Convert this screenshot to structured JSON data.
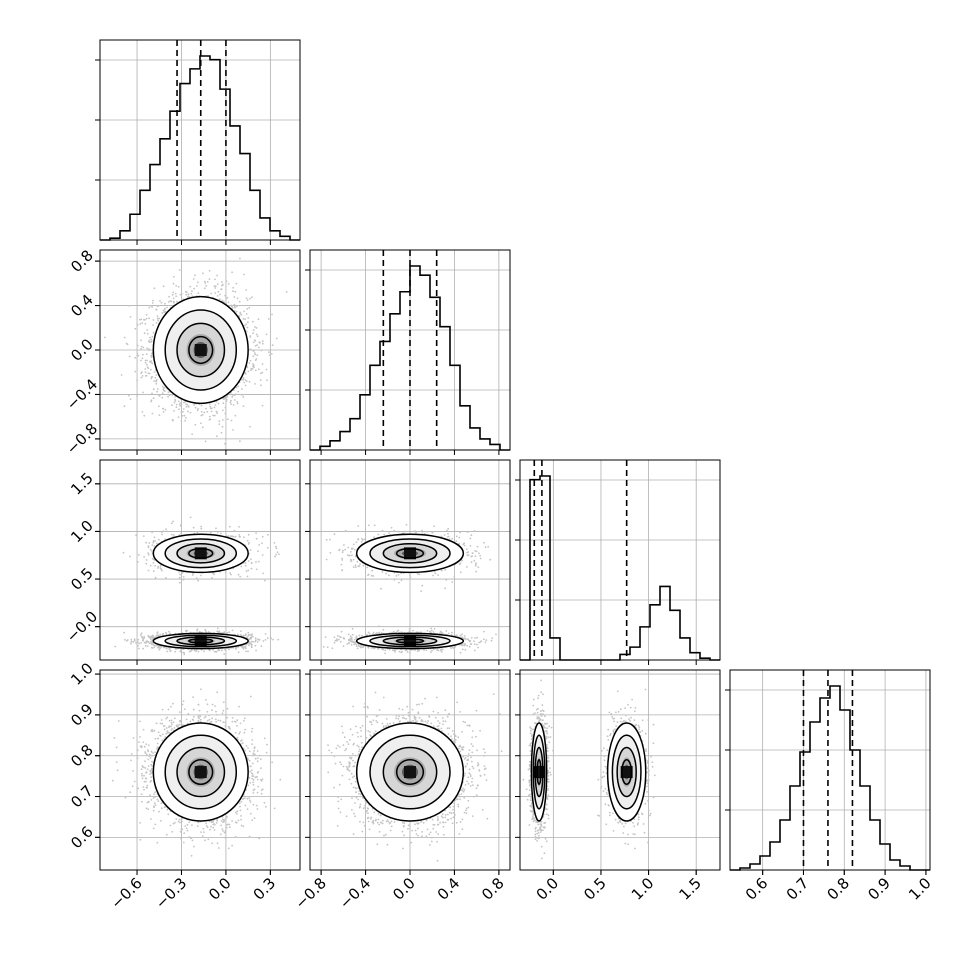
{
  "chart_data": {
    "type": "corner",
    "title": "",
    "grid": true,
    "parameters": [
      {
        "range": [
          -0.85,
          0.5
        ],
        "ticks": [
          -0.6,
          -0.3,
          0.0,
          0.3
        ],
        "tick_labels": [
          "−0.6",
          "−0.3",
          "0.0",
          "0.3"
        ],
        "quantiles": [
          -0.33,
          -0.17,
          0.0
        ],
        "histogram": [
          0.0,
          0.01,
          0.05,
          0.14,
          0.27,
          0.41,
          0.55,
          0.7,
          0.85,
          0.93,
          1.0,
          0.98,
          0.82,
          0.62,
          0.47,
          0.27,
          0.12,
          0.05,
          0.02,
          0.0
        ]
      },
      {
        "range": [
          -0.9,
          0.9
        ],
        "ticks": [
          -0.8,
          -0.4,
          0.0,
          0.4,
          0.8
        ],
        "tick_labels": [
          "−0.8",
          "−0.4",
          "0.0",
          "0.4",
          "0.8"
        ],
        "quantiles": [
          -0.24,
          0.0,
          0.24
        ],
        "histogram": [
          0.0,
          0.02,
          0.05,
          0.1,
          0.17,
          0.3,
          0.46,
          0.59,
          0.74,
          0.86,
          1.0,
          0.95,
          0.83,
          0.67,
          0.46,
          0.24,
          0.12,
          0.06,
          0.03,
          0.0
        ]
      },
      {
        "range": [
          -0.35,
          1.75
        ],
        "ticks": [
          0.0,
          0.5,
          1.0,
          1.5
        ],
        "tick_labels": [
          "0.0",
          "0.5",
          "1.0",
          "1.5"
        ],
        "y_tick_labels": [
          "−0.0",
          "0.5",
          "1.0",
          "1.5"
        ],
        "quantiles": [
          -0.2,
          -0.12,
          0.77
        ],
        "histogram": [
          0.0,
          0.98,
          1.0,
          0.12,
          0.0,
          0.0,
          0.0,
          0.0,
          0.0,
          0.0,
          0.03,
          0.07,
          0.18,
          0.3,
          0.4,
          0.27,
          0.12,
          0.04,
          0.01,
          0.0
        ]
      },
      {
        "range": [
          0.52,
          1.01
        ],
        "ticks": [
          0.6,
          0.7,
          0.8,
          0.9,
          1.0
        ],
        "tick_labels": [
          "0.6",
          "0.7",
          "0.8",
          "0.9",
          "1.0"
        ],
        "quantiles": [
          0.7,
          0.76,
          0.82
        ],
        "histogram": [
          0.0,
          0.01,
          0.03,
          0.07,
          0.14,
          0.25,
          0.42,
          0.59,
          0.74,
          0.86,
          0.92,
          0.8,
          0.6,
          0.42,
          0.25,
          0.13,
          0.05,
          0.02,
          0.0,
          0.0
        ]
      }
    ],
    "joint_distributions": [
      {
        "x": 0,
        "y": 1,
        "modes": [
          {
            "mean": [
              -0.17,
              0.0
            ],
            "sd": [
              0.16,
              0.24
            ],
            "weight": 1.0
          }
        ]
      },
      {
        "x": 0,
        "y": 2,
        "modes": [
          {
            "mean": [
              -0.17,
              -0.15
            ],
            "sd": [
              0.16,
              0.04
            ],
            "weight": 0.65
          },
          {
            "mean": [
              -0.17,
              0.77
            ],
            "sd": [
              0.16,
              0.1
            ],
            "weight": 0.35
          }
        ]
      },
      {
        "x": 1,
        "y": 2,
        "modes": [
          {
            "mean": [
              0.0,
              -0.15
            ],
            "sd": [
              0.24,
              0.04
            ],
            "weight": 0.65
          },
          {
            "mean": [
              0.0,
              0.77
            ],
            "sd": [
              0.24,
              0.1
            ],
            "weight": 0.35
          }
        ]
      },
      {
        "x": 0,
        "y": 3,
        "modes": [
          {
            "mean": [
              -0.17,
              0.76
            ],
            "sd": [
              0.16,
              0.06
            ],
            "weight": 1.0
          }
        ]
      },
      {
        "x": 1,
        "y": 3,
        "modes": [
          {
            "mean": [
              0.0,
              0.76
            ],
            "sd": [
              0.24,
              0.06
            ],
            "weight": 1.0
          }
        ]
      },
      {
        "x": 2,
        "y": 3,
        "modes": [
          {
            "mean": [
              -0.15,
              0.76
            ],
            "sd": [
              0.04,
              0.06
            ],
            "weight": 0.65
          },
          {
            "mean": [
              0.77,
              0.76
            ],
            "sd": [
              0.1,
              0.06
            ],
            "weight": 0.35
          }
        ]
      }
    ],
    "contour_levels": [
      0.118,
      0.393,
      0.675,
      0.865
    ]
  }
}
